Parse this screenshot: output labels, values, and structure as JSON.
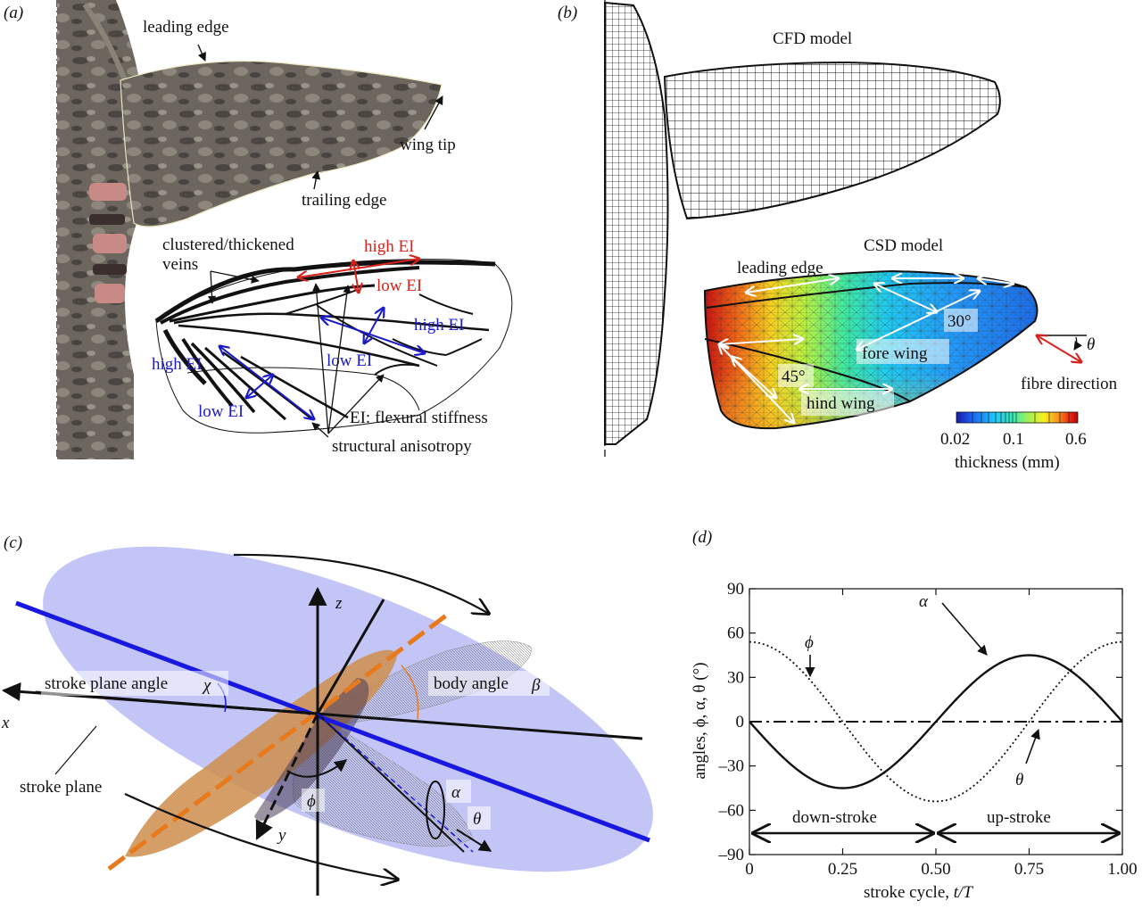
{
  "panels": {
    "a": {
      "tag": "(a)",
      "labels": {
        "leading_edge": "leading edge",
        "wing_tip": "wing tip",
        "trailing_edge": "trailing edge",
        "clustered_veins_line1": "clustered/thickened",
        "clustered_veins_line2": "veins",
        "high_ei_red": "high EI",
        "low_ei_red": "low EI",
        "high_ei_blue_right": "high EI",
        "low_ei_blue_mid": "low EI",
        "high_ei_blue_left": "high EI",
        "low_ei_blue_bottom": "low EI",
        "ei_definition": "EI: flexural stiffness",
        "structural_anisotropy": "structural anisotropy"
      }
    },
    "b": {
      "tag": "(b)",
      "labels": {
        "cfd_model": "CFD model",
        "csd_model": "CSD model",
        "leading_edge": "leading edge",
        "angle_30": "30°",
        "angle_45": "45°",
        "fore_wing": "fore wing",
        "hind_wing": "hind wing",
        "theta": "θ",
        "fibre_direction": "fibre direction"
      },
      "colorbar": {
        "ticks": [
          "0.02",
          "0.1",
          "0.6"
        ],
        "label": "thickness (mm)",
        "stops": [
          "#1a1aa8",
          "#1c5cf0",
          "#20c0ff",
          "#30e8c0",
          "#a8f050",
          "#f8f020",
          "#f89020",
          "#e82010",
          "#b00808"
        ]
      }
    },
    "c": {
      "tag": "(c)",
      "labels": {
        "x": "x",
        "y": "y",
        "z": "z",
        "stroke_plane_angle": "stroke plane angle",
        "chi": "χ",
        "body_angle": "body angle",
        "beta": "β",
        "stroke_plane": "stroke plane",
        "phi": "ϕ",
        "alpha": "α",
        "theta": "θ"
      }
    },
    "d": {
      "tag": "(d)",
      "chart_data": {
        "type": "line",
        "xlabel_prefix": "stroke cycle, ",
        "xlabel_var": "t/T",
        "ylabel": "angles, ϕ, α, θ (°)",
        "xlim": [
          0,
          1
        ],
        "ylim": [
          -90,
          90
        ],
        "x_ticks": [
          0,
          0.25,
          0.5,
          0.75,
          1.0
        ],
        "x_tick_labels": [
          "0",
          "0.25",
          "0.50",
          "0.75",
          "1.00"
        ],
        "y_ticks": [
          90,
          60,
          30,
          0,
          -30,
          -60,
          -90
        ],
        "y_tick_labels": [
          "90",
          "60",
          "30",
          "0",
          "–30",
          "–60",
          "–90"
        ],
        "series": [
          {
            "name": "ϕ",
            "style": "dotted",
            "amplitude": 54,
            "phase": "cos",
            "x": [
              0,
              0.125,
              0.25,
              0.375,
              0.5,
              0.625,
              0.75,
              0.875,
              1.0
            ],
            "values": [
              54,
              38,
              0,
              -38,
              -54,
              -38,
              0,
              38,
              54
            ]
          },
          {
            "name": "α",
            "style": "solid",
            "amplitude": 45,
            "phase": "-sin",
            "x": [
              0,
              0.125,
              0.25,
              0.375,
              0.5,
              0.625,
              0.75,
              0.875,
              1.0
            ],
            "values": [
              0,
              -32,
              -45,
              -32,
              0,
              32,
              45,
              32,
              0
            ]
          },
          {
            "name": "θ",
            "style": "dashdot",
            "x": [
              0,
              1.0
            ],
            "values": [
              0,
              0
            ]
          }
        ],
        "annotations": {
          "down_stroke": "down-stroke",
          "up_stroke": "up-stroke"
        }
      }
    }
  },
  "colors": {
    "wing_fill": "#5d5750",
    "body_fill": "#7b7267",
    "red_arrow": "#d8221c",
    "blue_arrow": "#1a1acb",
    "stroke_plane": "#9c9ff0",
    "body_axis": "#e87a1e",
    "blue_line": "#1818e0",
    "body_orange": "#d8924a"
  }
}
